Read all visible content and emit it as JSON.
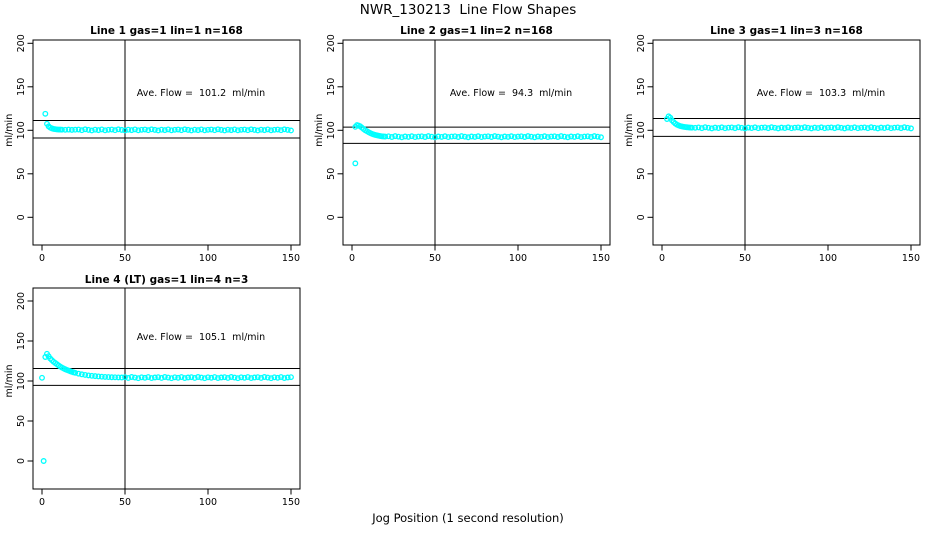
{
  "page": {
    "title": "NWR_130213  Line Flow Shapes",
    "xlabel": "Jog Position (1 second resolution)",
    "background": "#ffffff",
    "accent": "#00FFFF",
    "line_color": "#000000"
  },
  "chart_data": [
    {
      "type": "scatter",
      "row": 1,
      "title": "Line 1 gas=1 lin=1 n=168",
      "line": 1,
      "gas": 1,
      "lin": 1,
      "n": 168,
      "ave_flow": 101.2,
      "ave_label": "Ave. Flow =  101.2  ml/min",
      "ylabel": "ml/min",
      "xticks": [
        0,
        50,
        100,
        150
      ],
      "yticks": [
        0,
        50,
        100,
        150,
        200
      ],
      "vline_x": 50,
      "ref_upper": 111.3,
      "ref_lower": 91.1,
      "marker_color": "#00FFFF",
      "points": [
        [
          2,
          119
        ],
        [
          3,
          107.5
        ],
        [
          4,
          104.5
        ],
        [
          5,
          103
        ],
        [
          6,
          102.2
        ],
        [
          7,
          101.6
        ],
        [
          8,
          101.3
        ],
        [
          9,
          101
        ],
        [
          10,
          100.9
        ],
        [
          11,
          100.8
        ],
        [
          12,
          100.7
        ],
        [
          14,
          100.6
        ],
        [
          16,
          100.8
        ],
        [
          18,
          100.5
        ],
        [
          20,
          100.7
        ],
        [
          22,
          100.9
        ],
        [
          24,
          100.1
        ],
        [
          26,
          101.1
        ],
        [
          28,
          100.5
        ],
        [
          30,
          99.8
        ],
        [
          32,
          100.7
        ],
        [
          34,
          100.2
        ],
        [
          36,
          101.0
        ],
        [
          38,
          100.0
        ],
        [
          40,
          100.6
        ],
        [
          42,
          100.9
        ],
        [
          44,
          100.1
        ],
        [
          46,
          101.1
        ],
        [
          48,
          100.5
        ],
        [
          50,
          99.8
        ],
        [
          52,
          100.7
        ],
        [
          54,
          100.2
        ],
        [
          56,
          101.0
        ],
        [
          58,
          100.0
        ],
        [
          60,
          100.6
        ],
        [
          62,
          100.9
        ],
        [
          64,
          100.1
        ],
        [
          66,
          101.1
        ],
        [
          68,
          100.5
        ],
        [
          70,
          99.8
        ],
        [
          72,
          100.7
        ],
        [
          74,
          100.2
        ],
        [
          76,
          101.0
        ],
        [
          78,
          100.0
        ],
        [
          80,
          100.6
        ],
        [
          82,
          100.9
        ],
        [
          84,
          100.1
        ],
        [
          86,
          101.1
        ],
        [
          88,
          100.5
        ],
        [
          90,
          99.8
        ],
        [
          92,
          100.7
        ],
        [
          94,
          100.2
        ],
        [
          96,
          101.0
        ],
        [
          98,
          100.0
        ],
        [
          100,
          100.6
        ],
        [
          102,
          100.9
        ],
        [
          104,
          100.1
        ],
        [
          106,
          101.1
        ],
        [
          108,
          100.5
        ],
        [
          110,
          99.8
        ],
        [
          112,
          100.7
        ],
        [
          114,
          100.2
        ],
        [
          116,
          101.0
        ],
        [
          118,
          100.0
        ],
        [
          120,
          100.6
        ],
        [
          122,
          100.9
        ],
        [
          124,
          100.1
        ],
        [
          126,
          101.1
        ],
        [
          128,
          100.5
        ],
        [
          130,
          99.8
        ],
        [
          132,
          100.7
        ],
        [
          134,
          100.2
        ],
        [
          136,
          101.0
        ],
        [
          138,
          100.0
        ],
        [
          140,
          100.6
        ],
        [
          142,
          100.9
        ],
        [
          144,
          100.1
        ],
        [
          146,
          101.1
        ],
        [
          148,
          100.5
        ],
        [
          150,
          99.8
        ]
      ]
    },
    {
      "type": "scatter",
      "row": 1,
      "title": "Line 2 gas=1 lin=2 n=168",
      "line": 2,
      "gas": 1,
      "lin": 2,
      "n": 168,
      "ave_flow": 94.3,
      "ave_label": "Ave. Flow =  94.3  ml/min",
      "ylabel": "ml/min",
      "xticks": [
        0,
        50,
        100,
        150
      ],
      "yticks": [
        0,
        50,
        100,
        150,
        200
      ],
      "vline_x": 50,
      "ref_upper": 103.7,
      "ref_lower": 84.9,
      "marker_color": "#00FFFF",
      "points": [
        [
          2,
          62
        ],
        [
          2,
          104
        ],
        [
          3,
          106
        ],
        [
          4,
          105.5
        ],
        [
          5,
          104.5
        ],
        [
          6,
          103
        ],
        [
          7,
          101.5
        ],
        [
          8,
          100
        ],
        [
          9,
          99
        ],
        [
          10,
          97.8
        ],
        [
          11,
          96.8
        ],
        [
          12,
          96
        ],
        [
          13,
          95.3
        ],
        [
          14,
          94.7
        ],
        [
          15,
          94.2
        ],
        [
          16,
          93.8
        ],
        [
          17,
          93.4
        ],
        [
          18,
          93.1
        ],
        [
          19,
          92.9
        ],
        [
          20,
          92.8
        ],
        [
          22,
          93.1
        ],
        [
          24,
          92.3
        ],
        [
          26,
          93.3
        ],
        [
          28,
          92.7
        ],
        [
          30,
          92.0
        ],
        [
          32,
          92.9
        ],
        [
          34,
          92.4
        ],
        [
          36,
          93.2
        ],
        [
          38,
          92.2
        ],
        [
          40,
          92.8
        ],
        [
          42,
          93.1
        ],
        [
          44,
          92.3
        ],
        [
          46,
          93.3
        ],
        [
          48,
          92.7
        ],
        [
          50,
          92.0
        ],
        [
          52,
          92.9
        ],
        [
          54,
          92.4
        ],
        [
          56,
          93.2
        ],
        [
          58,
          92.2
        ],
        [
          60,
          92.8
        ],
        [
          62,
          93.1
        ],
        [
          64,
          92.3
        ],
        [
          66,
          93.3
        ],
        [
          68,
          92.7
        ],
        [
          70,
          92.0
        ],
        [
          72,
          92.9
        ],
        [
          74,
          92.4
        ],
        [
          76,
          93.2
        ],
        [
          78,
          92.2
        ],
        [
          80,
          92.8
        ],
        [
          82,
          93.1
        ],
        [
          84,
          92.3
        ],
        [
          86,
          93.3
        ],
        [
          88,
          92.7
        ],
        [
          90,
          92.0
        ],
        [
          92,
          92.9
        ],
        [
          94,
          92.4
        ],
        [
          96,
          93.2
        ],
        [
          98,
          92.2
        ],
        [
          100,
          92.8
        ],
        [
          102,
          93.1
        ],
        [
          104,
          92.3
        ],
        [
          106,
          93.3
        ],
        [
          108,
          92.7
        ],
        [
          110,
          92.0
        ],
        [
          112,
          92.9
        ],
        [
          114,
          92.4
        ],
        [
          116,
          93.2
        ],
        [
          118,
          92.2
        ],
        [
          120,
          92.8
        ],
        [
          122,
          93.1
        ],
        [
          124,
          92.3
        ],
        [
          126,
          93.3
        ],
        [
          128,
          92.7
        ],
        [
          130,
          92.0
        ],
        [
          132,
          92.9
        ],
        [
          134,
          92.4
        ],
        [
          136,
          93.2
        ],
        [
          138,
          92.2
        ],
        [
          140,
          92.8
        ],
        [
          142,
          93.1
        ],
        [
          144,
          92.3
        ],
        [
          146,
          93.3
        ],
        [
          148,
          92.7
        ],
        [
          150,
          92.0
        ]
      ]
    },
    {
      "type": "scatter",
      "row": 1,
      "title": "Line 3 gas=1 lin=3 n=168",
      "line": 3,
      "gas": 1,
      "lin": 3,
      "n": 168,
      "ave_flow": 103.3,
      "ave_label": "Ave. Flow =  103.3  ml/min",
      "ylabel": "ml/min",
      "xticks": [
        0,
        50,
        100,
        150
      ],
      "yticks": [
        0,
        50,
        100,
        150,
        200
      ],
      "vline_x": 50,
      "ref_upper": 113.6,
      "ref_lower": 93.0,
      "marker_color": "#00FFFF",
      "points": [
        [
          3,
          113
        ],
        [
          4,
          116
        ],
        [
          5,
          114.5
        ],
        [
          6,
          111.5
        ],
        [
          7,
          109.5
        ],
        [
          8,
          107.8
        ],
        [
          9,
          106.5
        ],
        [
          10,
          105.6
        ],
        [
          11,
          104.9
        ],
        [
          12,
          104.4
        ],
        [
          13,
          104
        ],
        [
          14,
          103.7
        ],
        [
          15,
          103.5
        ],
        [
          16,
          103.3
        ],
        [
          17,
          103.1
        ],
        [
          18,
          103
        ],
        [
          20,
          102.9
        ],
        [
          22,
          103.3
        ],
        [
          24,
          102.5
        ],
        [
          26,
          103.5
        ],
        [
          28,
          102.9
        ],
        [
          30,
          102.2
        ],
        [
          32,
          103.1
        ],
        [
          34,
          102.6
        ],
        [
          36,
          103.4
        ],
        [
          38,
          102.4
        ],
        [
          40,
          103.0
        ],
        [
          42,
          103.3
        ],
        [
          44,
          102.5
        ],
        [
          46,
          103.5
        ],
        [
          48,
          102.9
        ],
        [
          50,
          102.2
        ],
        [
          52,
          103.1
        ],
        [
          54,
          102.6
        ],
        [
          56,
          103.4
        ],
        [
          58,
          102.4
        ],
        [
          60,
          103.0
        ],
        [
          62,
          103.3
        ],
        [
          64,
          102.5
        ],
        [
          66,
          103.5
        ],
        [
          68,
          102.9
        ],
        [
          70,
          102.2
        ],
        [
          72,
          103.1
        ],
        [
          74,
          102.6
        ],
        [
          76,
          103.4
        ],
        [
          78,
          102.4
        ],
        [
          80,
          103.0
        ],
        [
          82,
          103.3
        ],
        [
          84,
          102.5
        ],
        [
          86,
          103.5
        ],
        [
          88,
          102.9
        ],
        [
          90,
          102.2
        ],
        [
          92,
          103.1
        ],
        [
          94,
          102.6
        ],
        [
          96,
          103.4
        ],
        [
          98,
          102.4
        ],
        [
          100,
          103.0
        ],
        [
          102,
          103.3
        ],
        [
          104,
          102.5
        ],
        [
          106,
          103.5
        ],
        [
          108,
          102.9
        ],
        [
          110,
          102.2
        ],
        [
          112,
          103.1
        ],
        [
          114,
          102.6
        ],
        [
          116,
          103.4
        ],
        [
          118,
          102.4
        ],
        [
          120,
          103.0
        ],
        [
          122,
          103.3
        ],
        [
          124,
          102.5
        ],
        [
          126,
          103.5
        ],
        [
          128,
          102.9
        ],
        [
          130,
          102.2
        ],
        [
          132,
          103.1
        ],
        [
          134,
          102.6
        ],
        [
          136,
          103.4
        ],
        [
          138,
          102.4
        ],
        [
          140,
          103.0
        ],
        [
          142,
          103.3
        ],
        [
          144,
          102.5
        ],
        [
          146,
          103.5
        ],
        [
          148,
          102.9
        ],
        [
          150,
          102.2
        ]
      ]
    },
    {
      "type": "scatter",
      "row": 2,
      "title": "Line 4 (LT) gas=1 lin=4 n=3",
      "line": 4,
      "gas": 1,
      "lin": 4,
      "n": 3,
      "lt": true,
      "ave_flow": 105.1,
      "ave_label": "Ave. Flow =  105.1  ml/min",
      "ylabel": "ml/min",
      "xticks": [
        0,
        50,
        100,
        150
      ],
      "yticks": [
        0,
        50,
        100,
        150,
        200
      ],
      "vline_x": 50,
      "ref_upper": 115.6,
      "ref_lower": 94.6,
      "marker_color": "#00FFFF",
      "points": [
        [
          0,
          104
        ],
        [
          1,
          0
        ],
        [
          2,
          130
        ],
        [
          3,
          134
        ],
        [
          4,
          131
        ],
        [
          5,
          128
        ],
        [
          6,
          126
        ],
        [
          7,
          124
        ],
        [
          8,
          122.5
        ],
        [
          9,
          121
        ],
        [
          10,
          119.5
        ],
        [
          11,
          118
        ],
        [
          12,
          116.8
        ],
        [
          13,
          115.7
        ],
        [
          14,
          114.7
        ],
        [
          15,
          113.8
        ],
        [
          16,
          113
        ],
        [
          17,
          112.2
        ],
        [
          18,
          111.5
        ],
        [
          19,
          110.8
        ],
        [
          20,
          110.2
        ],
        [
          22,
          109.2
        ],
        [
          24,
          108.3
        ],
        [
          26,
          107.6
        ],
        [
          28,
          107
        ],
        [
          30,
          106.5
        ],
        [
          32,
          106.1
        ],
        [
          34,
          105.7
        ],
        [
          36,
          105.4
        ],
        [
          38,
          105.1
        ],
        [
          40,
          104.9
        ],
        [
          42,
          104.7
        ],
        [
          44,
          104.6
        ],
        [
          46,
          104.5
        ],
        [
          48,
          104.4
        ],
        [
          50,
          104.8
        ],
        [
          52,
          103.8
        ],
        [
          54,
          105.0
        ],
        [
          56,
          104.3
        ],
        [
          58,
          103.5
        ],
        [
          60,
          104.6
        ],
        [
          62,
          104.0
        ],
        [
          64,
          104.9
        ],
        [
          66,
          103.7
        ],
        [
          68,
          104.4
        ],
        [
          70,
          104.8
        ],
        [
          72,
          103.8
        ],
        [
          74,
          105.0
        ],
        [
          76,
          104.3
        ],
        [
          78,
          103.5
        ],
        [
          80,
          104.6
        ],
        [
          82,
          104.0
        ],
        [
          84,
          104.9
        ],
        [
          86,
          103.7
        ],
        [
          88,
          104.4
        ],
        [
          90,
          104.8
        ],
        [
          92,
          103.8
        ],
        [
          94,
          105.0
        ],
        [
          96,
          104.3
        ],
        [
          98,
          103.5
        ],
        [
          100,
          104.6
        ],
        [
          102,
          104.0
        ],
        [
          104,
          104.9
        ],
        [
          106,
          103.7
        ],
        [
          108,
          104.4
        ],
        [
          110,
          104.8
        ],
        [
          112,
          103.8
        ],
        [
          114,
          105.0
        ],
        [
          116,
          104.3
        ],
        [
          118,
          103.5
        ],
        [
          120,
          104.6
        ],
        [
          122,
          104.0
        ],
        [
          124,
          104.9
        ],
        [
          126,
          103.7
        ],
        [
          128,
          104.4
        ],
        [
          130,
          104.8
        ],
        [
          132,
          103.8
        ],
        [
          134,
          105.0
        ],
        [
          136,
          104.3
        ],
        [
          138,
          103.5
        ],
        [
          140,
          104.6
        ],
        [
          142,
          104.0
        ],
        [
          144,
          104.9
        ],
        [
          146,
          103.7
        ],
        [
          148,
          104.4
        ],
        [
          150,
          104.8
        ]
      ]
    }
  ]
}
